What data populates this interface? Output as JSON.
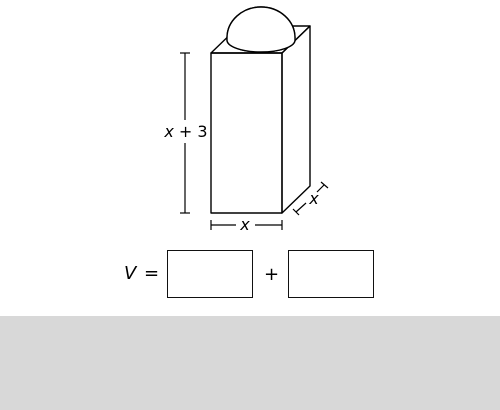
{
  "figure": {
    "height_label": {
      "var": "x",
      "rest": " + 3"
    },
    "width_label": "x",
    "depth_label": "x"
  },
  "equation": {
    "lhs_var": "V",
    "equals": "=",
    "plus": "+",
    "answer_1_value": "",
    "answer_2_value": ""
  },
  "colors": {
    "stroke": "#000000",
    "footer_band": "#d8d8d8",
    "background": "#ffffff"
  }
}
